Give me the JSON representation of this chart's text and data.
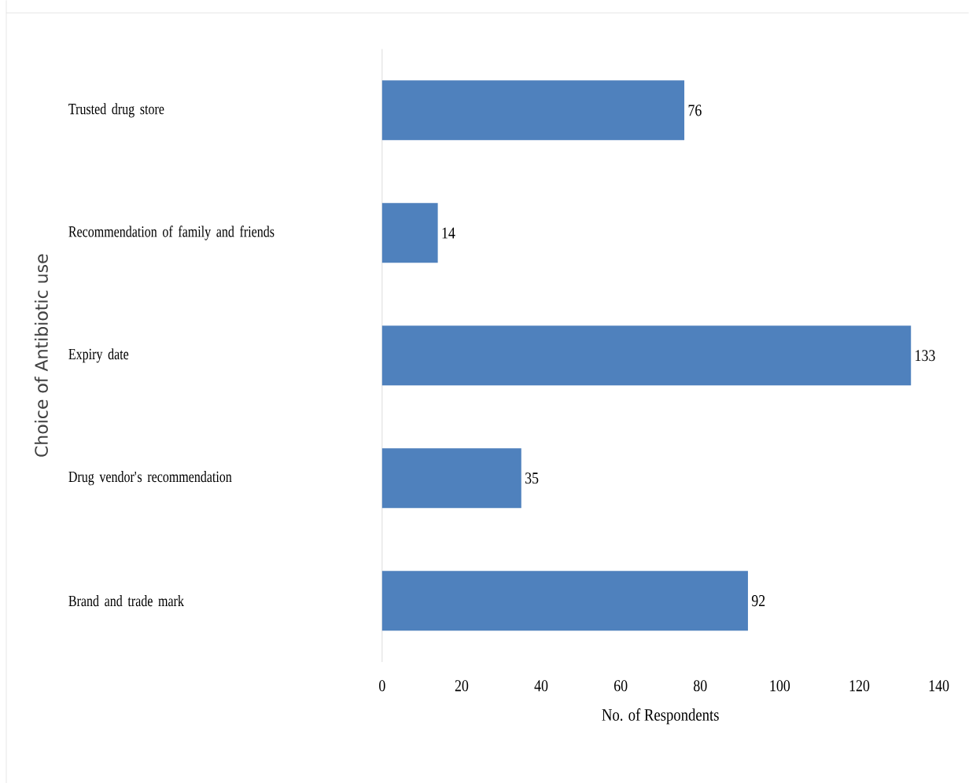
{
  "chart_data": {
    "type": "bar",
    "orientation": "horizontal",
    "xlabel": "No. of Respondents",
    "ylabel": "Choice  of Antibiotic use",
    "categories": [
      "Trusted drug store",
      "Recommendation of family and friends",
      "Expiry date",
      "Drug vendor's recommendation",
      "Brand and trade mark"
    ],
    "values": [
      76,
      14,
      133,
      35,
      92
    ],
    "color": "#4f81bd",
    "data_labels": true,
    "xlim": [
      0,
      140
    ],
    "xticks": [
      0,
      20,
      40,
      60,
      80,
      100,
      120,
      140
    ]
  }
}
